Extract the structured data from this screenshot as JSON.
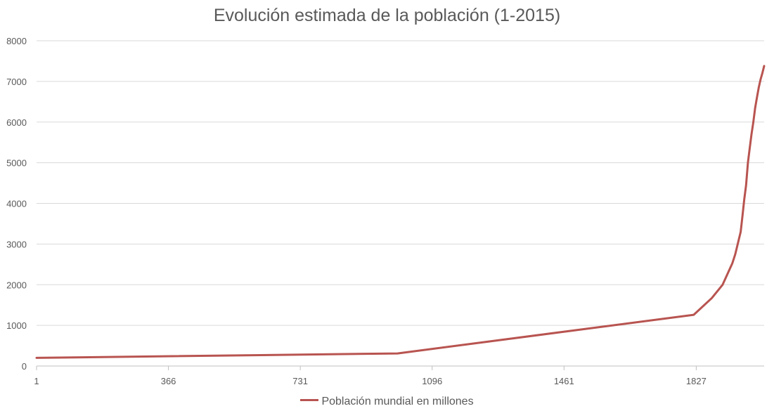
{
  "chart_data": {
    "type": "line",
    "title": "Evolución estimada de la población (1-2015)",
    "xlabel": "",
    "ylabel": "",
    "x_tick_labels": [
      "1",
      "366",
      "731",
      "1096",
      "1461",
      "1827"
    ],
    "x_tick_values": [
      1,
      366,
      731,
      1096,
      1461,
      1827
    ],
    "xlim": [
      1,
      2015
    ],
    "ylim": [
      0,
      8000
    ],
    "y_ticks": [
      0,
      1000,
      2000,
      3000,
      4000,
      5000,
      6000,
      7000,
      8000
    ],
    "grid": true,
    "legend_position": "bottom",
    "series": [
      {
        "name": "Población mundial en millones",
        "color": "#b85450",
        "points": [
          [
            1,
            200
          ],
          [
            1000,
            310
          ],
          [
            1820,
            1260
          ],
          [
            1870,
            1670
          ],
          [
            1900,
            2000
          ],
          [
            1927,
            2530
          ],
          [
            1935,
            2750
          ],
          [
            1950,
            3300
          ],
          [
            1955,
            3700
          ],
          [
            1960,
            4100
          ],
          [
            1965,
            4450
          ],
          [
            1970,
            5000
          ],
          [
            1975,
            5350
          ],
          [
            1980,
            5700
          ],
          [
            1985,
            6000
          ],
          [
            1990,
            6350
          ],
          [
            1995,
            6600
          ],
          [
            2000,
            6850
          ],
          [
            2005,
            7050
          ],
          [
            2010,
            7200
          ],
          [
            2015,
            7380
          ]
        ]
      }
    ]
  }
}
